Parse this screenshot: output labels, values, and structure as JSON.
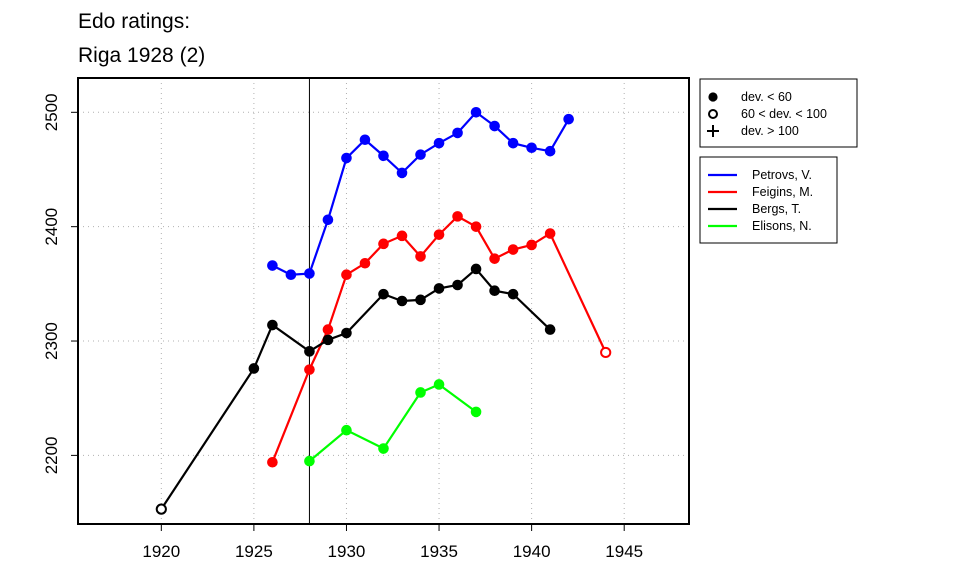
{
  "chart_data": {
    "type": "line",
    "title_lines": [
      "Edo ratings:",
      "Riga 1928 (2)"
    ],
    "xlabel": "",
    "ylabel": "",
    "xlim": [
      1915.5,
      1948.5
    ],
    "ylim": [
      2140,
      2530
    ],
    "x_ticks": [
      1920,
      1925,
      1930,
      1935,
      1940,
      1945
    ],
    "y_ticks": [
      2200,
      2300,
      2400,
      2500
    ],
    "grid": true,
    "event_year": 1928,
    "legend_markers": [
      {
        "label": "dev. < 60",
        "marker": "filled-circle"
      },
      {
        "label": "60 < dev. < 100",
        "marker": "open-circle"
      },
      {
        "label": "dev. > 100",
        "marker": "plus"
      }
    ],
    "series": [
      {
        "name": "Petrovs, V.",
        "color": "#0000ff",
        "points": [
          {
            "x": 1926,
            "y": 2366,
            "m": "filled"
          },
          {
            "x": 1927,
            "y": 2358,
            "m": "filled"
          },
          {
            "x": 1928,
            "y": 2359,
            "m": "filled"
          },
          {
            "x": 1929,
            "y": 2406,
            "m": "filled"
          },
          {
            "x": 1930,
            "y": 2460,
            "m": "filled"
          },
          {
            "x": 1931,
            "y": 2476,
            "m": "filled"
          },
          {
            "x": 1932,
            "y": 2462,
            "m": "filled"
          },
          {
            "x": 1933,
            "y": 2447,
            "m": "filled"
          },
          {
            "x": 1934,
            "y": 2463,
            "m": "filled"
          },
          {
            "x": 1935,
            "y": 2473,
            "m": "filled"
          },
          {
            "x": 1936,
            "y": 2482,
            "m": "filled"
          },
          {
            "x": 1937,
            "y": 2500,
            "m": "filled"
          },
          {
            "x": 1938,
            "y": 2488,
            "m": "filled"
          },
          {
            "x": 1939,
            "y": 2473,
            "m": "filled"
          },
          {
            "x": 1940,
            "y": 2469,
            "m": "filled"
          },
          {
            "x": 1941,
            "y": 2466,
            "m": "filled"
          },
          {
            "x": 1942,
            "y": 2494,
            "m": "filled"
          }
        ]
      },
      {
        "name": "Feigins, M.",
        "color": "#ff0000",
        "points": [
          {
            "x": 1926,
            "y": 2194,
            "m": "filled"
          },
          {
            "x": 1928,
            "y": 2275,
            "m": "filled"
          },
          {
            "x": 1929,
            "y": 2310,
            "m": "filled"
          },
          {
            "x": 1930,
            "y": 2358,
            "m": "filled"
          },
          {
            "x": 1931,
            "y": 2368,
            "m": "filled"
          },
          {
            "x": 1932,
            "y": 2385,
            "m": "filled"
          },
          {
            "x": 1933,
            "y": 2392,
            "m": "filled"
          },
          {
            "x": 1934,
            "y": 2374,
            "m": "filled"
          },
          {
            "x": 1935,
            "y": 2393,
            "m": "filled"
          },
          {
            "x": 1936,
            "y": 2409,
            "m": "filled"
          },
          {
            "x": 1937,
            "y": 2400,
            "m": "filled"
          },
          {
            "x": 1938,
            "y": 2372,
            "m": "filled"
          },
          {
            "x": 1939,
            "y": 2380,
            "m": "filled"
          },
          {
            "x": 1940,
            "y": 2384,
            "m": "filled"
          },
          {
            "x": 1941,
            "y": 2394,
            "m": "filled"
          },
          {
            "x": 1944,
            "y": 2290,
            "m": "open"
          }
        ]
      },
      {
        "name": "Bergs, T.",
        "color": "#000000",
        "points": [
          {
            "x": 1920,
            "y": 2153,
            "m": "open"
          },
          {
            "x": 1925,
            "y": 2276,
            "m": "filled"
          },
          {
            "x": 1926,
            "y": 2314,
            "m": "filled"
          },
          {
            "x": 1928,
            "y": 2291,
            "m": "filled"
          },
          {
            "x": 1929,
            "y": 2301,
            "m": "filled"
          },
          {
            "x": 1930,
            "y": 2307,
            "m": "filled"
          },
          {
            "x": 1932,
            "y": 2341,
            "m": "filled"
          },
          {
            "x": 1933,
            "y": 2335,
            "m": "filled"
          },
          {
            "x": 1934,
            "y": 2336,
            "m": "filled"
          },
          {
            "x": 1935,
            "y": 2346,
            "m": "filled"
          },
          {
            "x": 1936,
            "y": 2349,
            "m": "filled"
          },
          {
            "x": 1937,
            "y": 2363,
            "m": "filled"
          },
          {
            "x": 1938,
            "y": 2344,
            "m": "filled"
          },
          {
            "x": 1939,
            "y": 2341,
            "m": "filled"
          },
          {
            "x": 1941,
            "y": 2310,
            "m": "filled"
          }
        ]
      },
      {
        "name": "Elisons, N.",
        "color": "#00ff00",
        "points": [
          {
            "x": 1928,
            "y": 2195,
            "m": "filled"
          },
          {
            "x": 1930,
            "y": 2222,
            "m": "filled"
          },
          {
            "x": 1932,
            "y": 2206,
            "m": "filled"
          },
          {
            "x": 1934,
            "y": 2255,
            "m": "filled"
          },
          {
            "x": 1935,
            "y": 2262,
            "m": "filled"
          },
          {
            "x": 1937,
            "y": 2238,
            "m": "filled"
          }
        ]
      }
    ]
  }
}
